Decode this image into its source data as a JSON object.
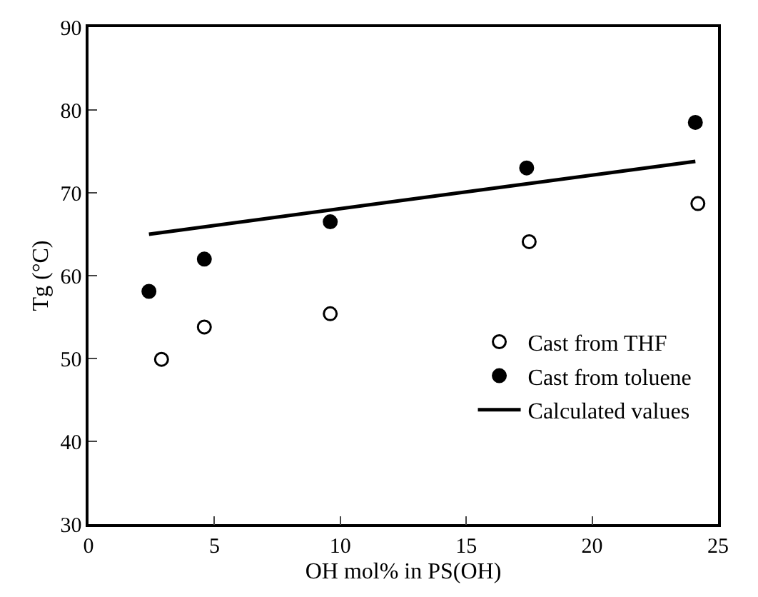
{
  "chart_data": {
    "type": "scatter",
    "xlabel": "OH mol% in PS(OH)",
    "ylabel": "Tg (°C)",
    "xlim": [
      0,
      25
    ],
    "xticks": [
      0,
      5,
      10,
      15,
      20,
      25
    ],
    "ylim": [
      30,
      90
    ],
    "yticks": [
      30,
      40,
      50,
      60,
      70,
      80,
      90
    ],
    "legend": "bottom right",
    "series": [
      {
        "name": "Cast from THF",
        "color": "#000000",
        "marker": "circle-open",
        "x": [
          2.9,
          4.6,
          9.6,
          17.5,
          24.2
        ],
        "values": [
          49.9,
          53.8,
          55.4,
          64.1,
          68.7
        ]
      },
      {
        "name": "Cast from toluene",
        "color": "#000000",
        "marker": "circle",
        "x": [
          2.4,
          4.6,
          9.6,
          17.4,
          24.1
        ],
        "values": [
          58.1,
          62.0,
          66.5,
          73.0,
          78.5
        ]
      },
      {
        "name": "Calculated values",
        "type": "line",
        "color": "#000000",
        "line_style": "solid",
        "x": [
          2.4,
          24.1
        ],
        "values": [
          65.0,
          73.8
        ]
      }
    ]
  }
}
